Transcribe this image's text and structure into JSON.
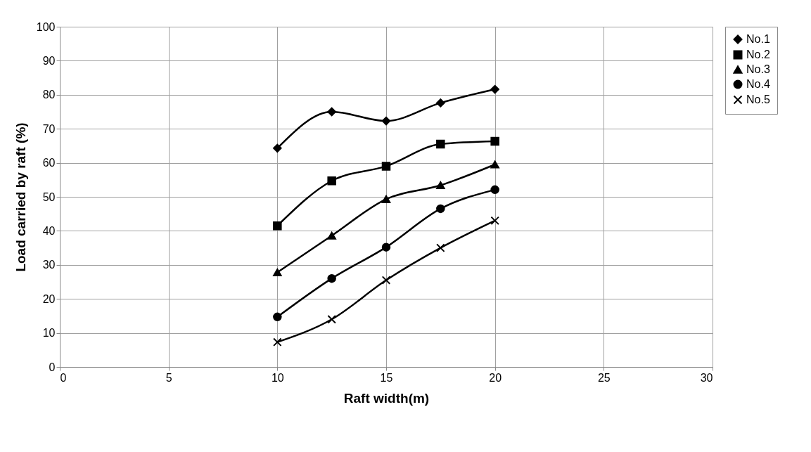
{
  "chart_data": {
    "type": "line",
    "xlabel": "Raft width(m)",
    "ylabel": "Load carried by raft (%)",
    "x": [
      10,
      12.5,
      15,
      17.5,
      20
    ],
    "series": [
      {
        "name": "No.1",
        "color": "#000000",
        "marker": "diamond",
        "values": [
          64.3,
          75,
          72.3,
          77.6,
          81.6
        ]
      },
      {
        "name": "No.2",
        "color": "#000000",
        "marker": "square",
        "values": [
          41.5,
          54.7,
          59,
          65.5,
          66.3
        ]
      },
      {
        "name": "No.3",
        "color": "#000000",
        "marker": "triangle",
        "values": [
          27.8,
          38.6,
          49.3,
          53.4,
          59.5
        ]
      },
      {
        "name": "No.4",
        "color": "#000000",
        "marker": "circle",
        "values": [
          14.7,
          26,
          35.2,
          46.5,
          52.1
        ]
      },
      {
        "name": "No.5",
        "color": "#000000",
        "marker": "cross",
        "values": [
          7.3,
          14,
          25.5,
          35,
          43
        ]
      }
    ],
    "xlim": [
      0,
      30
    ],
    "xticks": [
      0,
      5,
      10,
      15,
      20,
      25,
      30
    ],
    "ylim": [
      0,
      100
    ],
    "yticks": [
      0,
      10,
      20,
      30,
      40,
      50,
      60,
      70,
      80,
      90,
      100
    ],
    "grid": true,
    "legend": "right",
    "line_style": "solid"
  }
}
